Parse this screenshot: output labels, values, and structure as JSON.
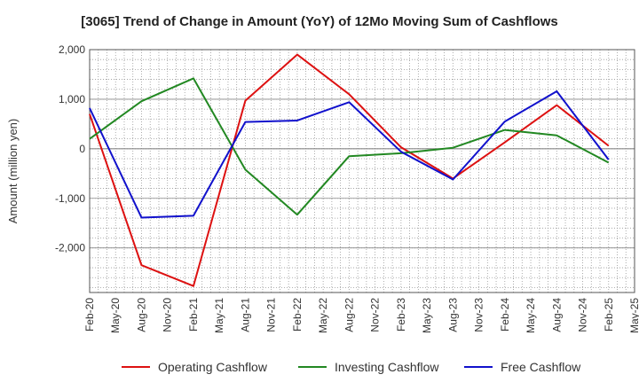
{
  "chart_data": {
    "type": "line",
    "title": "[3065]  Trend of Change in Amount (YoY) of 12Mo Moving Sum of Cashflows",
    "xlabel": "",
    "ylabel": "Amount (million yen)",
    "ylim": [
      -2900,
      2000
    ],
    "yticks": [
      2000,
      1000,
      0,
      -1000,
      -2000
    ],
    "ytick_labels": [
      "2,000",
      "1,000",
      "0",
      "-1,000",
      "-2,000"
    ],
    "categories": [
      "Feb-20",
      "May-20",
      "Aug-20",
      "Nov-20",
      "Feb-21",
      "May-21",
      "Aug-21",
      "Nov-21",
      "Feb-22",
      "May-22",
      "Aug-22",
      "Nov-22",
      "Feb-23",
      "May-23",
      "Aug-23",
      "Nov-23",
      "Feb-24",
      "May-24",
      "Aug-24",
      "Nov-24",
      "Feb-25",
      "May-25"
    ],
    "series": [
      {
        "name": "Operating Cashflow",
        "color": "#dd1111",
        "values": [
          700,
          null,
          -2350,
          null,
          -2770,
          null,
          970,
          null,
          1900,
          null,
          1100,
          null,
          30,
          null,
          -600,
          null,
          130,
          null,
          880,
          null,
          60,
          null
        ]
      },
      {
        "name": "Investing Cashflow",
        "color": "#228822",
        "values": [
          200,
          null,
          960,
          null,
          1420,
          null,
          -420,
          null,
          -1330,
          null,
          -150,
          null,
          -90,
          null,
          20,
          null,
          380,
          null,
          270,
          null,
          -280,
          null
        ]
      },
      {
        "name": "Free Cashflow",
        "color": "#1111cc",
        "values": [
          820,
          null,
          -1390,
          null,
          -1350,
          null,
          540,
          null,
          570,
          null,
          940,
          null,
          -60,
          null,
          -620,
          null,
          550,
          null,
          1160,
          null,
          -220,
          null
        ]
      }
    ]
  }
}
